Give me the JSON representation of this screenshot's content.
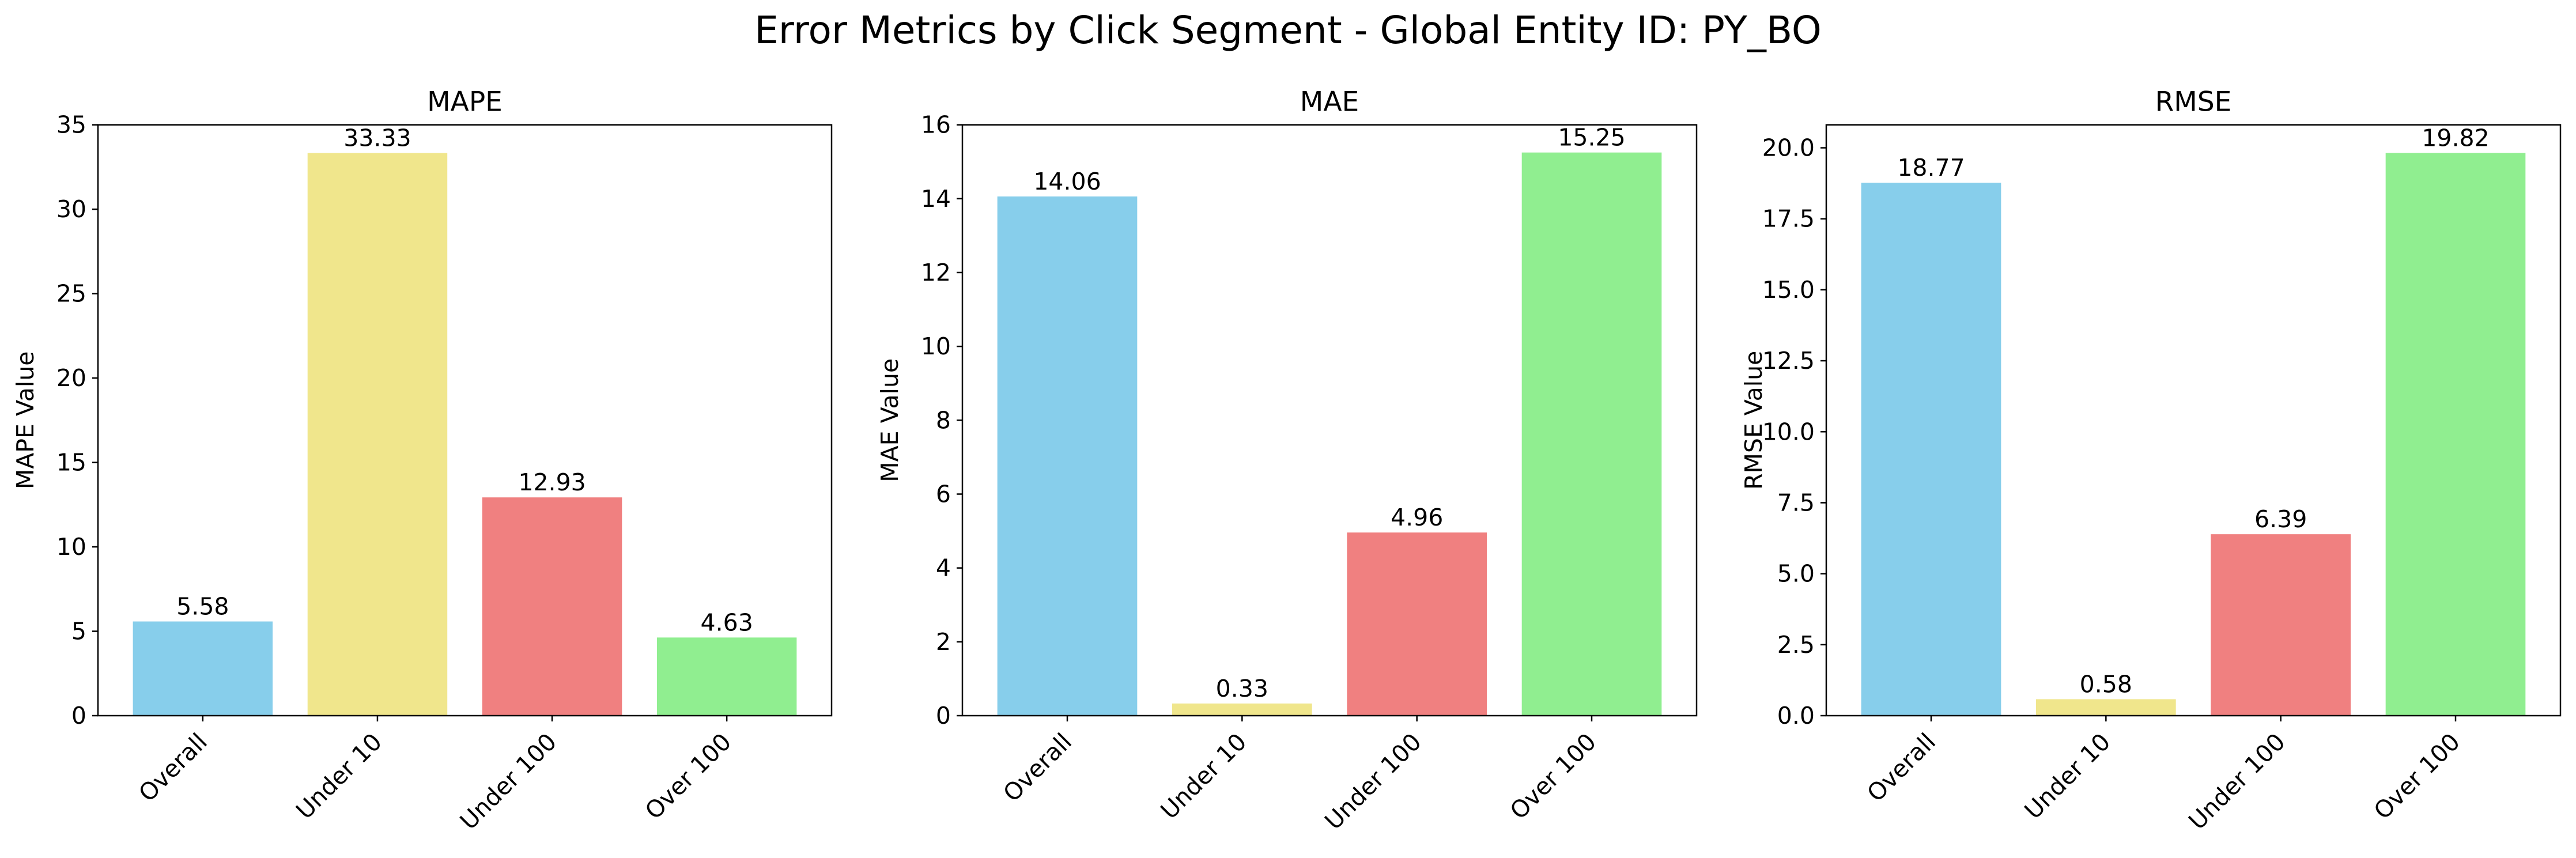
{
  "suptitle": "Error Metrics by Click Segment - Global Entity ID: PY_BO",
  "colors": {
    "Overall": "#87ceeb",
    "Under 10": "#f0e68c",
    "Under 100": "#f08080",
    "Over 100": "#90ee90"
  },
  "chart_data": [
    {
      "type": "bar",
      "title": "MAPE",
      "xlabel": "",
      "ylabel": "MAPE Value",
      "categories": [
        "Overall",
        "Under 10",
        "Under 100",
        "Over 100"
      ],
      "values": [
        5.58,
        33.33,
        12.93,
        4.63
      ],
      "value_labels": [
        "5.58",
        "33.33",
        "12.93",
        "4.63"
      ],
      "ylim": [
        0,
        35
      ],
      "yticks": [
        0,
        5,
        10,
        15,
        20,
        25,
        30,
        35
      ],
      "ytick_labels": [
        "0",
        "5",
        "10",
        "15",
        "20",
        "25",
        "30",
        "35"
      ],
      "grid": false
    },
    {
      "type": "bar",
      "title": "MAE",
      "xlabel": "",
      "ylabel": "MAE Value",
      "categories": [
        "Overall",
        "Under 10",
        "Under 100",
        "Over 100"
      ],
      "values": [
        14.06,
        0.33,
        4.96,
        15.25
      ],
      "value_labels": [
        "14.06",
        "0.33",
        "4.96",
        "15.25"
      ],
      "ylim": [
        0,
        16
      ],
      "yticks": [
        0,
        2,
        4,
        6,
        8,
        10,
        12,
        14,
        16
      ],
      "ytick_labels": [
        "0",
        "2",
        "4",
        "6",
        "8",
        "10",
        "12",
        "14",
        "16"
      ],
      "grid": false
    },
    {
      "type": "bar",
      "title": "RMSE",
      "xlabel": "",
      "ylabel": "RMSE Value",
      "categories": [
        "Overall",
        "Under 10",
        "Under 100",
        "Over 100"
      ],
      "values": [
        18.77,
        0.58,
        6.39,
        19.82
      ],
      "value_labels": [
        "18.77",
        "0.58",
        "6.39",
        "19.82"
      ],
      "ylim": [
        0,
        20.81
      ],
      "yticks": [
        0,
        2.5,
        5,
        7.5,
        10,
        12.5,
        15,
        17.5,
        20
      ],
      "ytick_labels": [
        "0.0",
        "2.5",
        "5.0",
        "7.5",
        "10.0",
        "12.5",
        "15.0",
        "17.5",
        "20.0"
      ],
      "grid": false
    }
  ]
}
